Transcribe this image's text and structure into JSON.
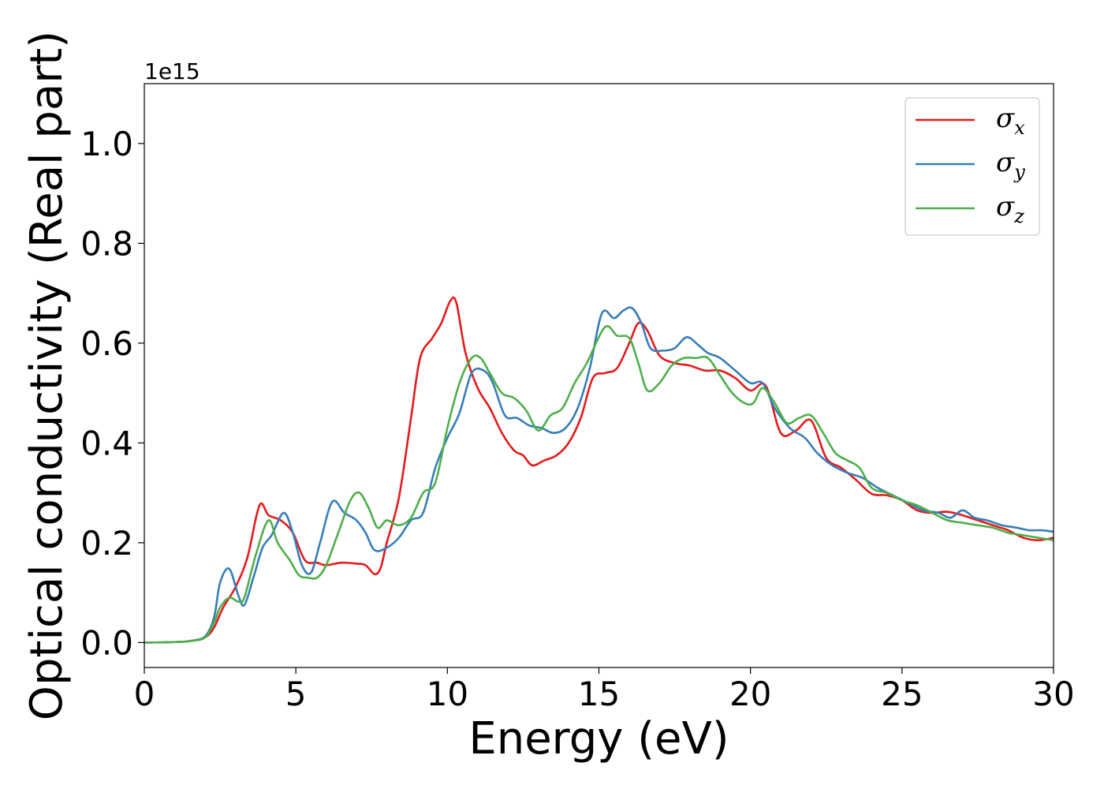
{
  "chart_data": {
    "type": "line",
    "xlabel": "Energy (eV)",
    "ylabel": "Optical conductivity (Real part)",
    "y_offset_label": "1e15",
    "xlim": [
      0,
      30
    ],
    "ylim": [
      -0.05,
      1.12
    ],
    "x_ticks": [
      0,
      5,
      10,
      15,
      20,
      25,
      30
    ],
    "x_tick_labels": [
      "0",
      "5",
      "10",
      "15",
      "20",
      "25",
      "30"
    ],
    "y_ticks": [
      0.0,
      0.2,
      0.4,
      0.6,
      0.8,
      1.0
    ],
    "y_tick_labels": [
      "0.0",
      "0.2",
      "0.4",
      "0.6",
      "0.8",
      "1.0"
    ],
    "grid": false,
    "legend_position": "top-right",
    "series": [
      {
        "name": "σx",
        "symbol": "σ",
        "subscript": "x",
        "color": "#e41a1c",
        "points": [
          [
            0,
            0
          ],
          [
            1,
            0.001
          ],
          [
            1.5,
            0.003
          ],
          [
            2,
            0.01
          ],
          [
            2.3,
            0.03
          ],
          [
            2.6,
            0.07
          ],
          [
            3,
            0.11
          ],
          [
            3.4,
            0.17
          ],
          [
            3.8,
            0.275
          ],
          [
            4.1,
            0.255
          ],
          [
            4.5,
            0.245
          ],
          [
            4.9,
            0.22
          ],
          [
            5.3,
            0.165
          ],
          [
            5.7,
            0.16
          ],
          [
            6,
            0.155
          ],
          [
            6.5,
            0.16
          ],
          [
            7,
            0.158
          ],
          [
            7.3,
            0.155
          ],
          [
            7.6,
            0.137
          ],
          [
            7.8,
            0.15
          ],
          [
            8,
            0.2
          ],
          [
            8.4,
            0.29
          ],
          [
            8.8,
            0.45
          ],
          [
            9.1,
            0.57
          ],
          [
            9.5,
            0.61
          ],
          [
            9.8,
            0.64
          ],
          [
            10.1,
            0.685
          ],
          [
            10.3,
            0.68
          ],
          [
            10.6,
            0.58
          ],
          [
            11,
            0.51
          ],
          [
            11.4,
            0.47
          ],
          [
            11.8,
            0.42
          ],
          [
            12.2,
            0.385
          ],
          [
            12.5,
            0.375
          ],
          [
            12.8,
            0.355
          ],
          [
            13.2,
            0.365
          ],
          [
            13.6,
            0.375
          ],
          [
            14,
            0.4
          ],
          [
            14.4,
            0.45
          ],
          [
            14.8,
            0.53
          ],
          [
            15.2,
            0.54
          ],
          [
            15.6,
            0.55
          ],
          [
            16,
            0.6
          ],
          [
            16.3,
            0.64
          ],
          [
            16.6,
            0.625
          ],
          [
            17,
            0.575
          ],
          [
            17.5,
            0.56
          ],
          [
            18,
            0.555
          ],
          [
            18.5,
            0.545
          ],
          [
            19,
            0.545
          ],
          [
            19.5,
            0.53
          ],
          [
            20,
            0.505
          ],
          [
            20.5,
            0.515
          ],
          [
            21,
            0.42
          ],
          [
            21.5,
            0.425
          ],
          [
            22,
            0.445
          ],
          [
            22.5,
            0.37
          ],
          [
            23,
            0.35
          ],
          [
            23.5,
            0.325
          ],
          [
            24,
            0.298
          ],
          [
            24.5,
            0.295
          ],
          [
            25,
            0.285
          ],
          [
            25.5,
            0.265
          ],
          [
            26,
            0.26
          ],
          [
            26.5,
            0.262
          ],
          [
            27,
            0.255
          ],
          [
            27.5,
            0.245
          ],
          [
            28,
            0.235
          ],
          [
            28.5,
            0.225
          ],
          [
            29,
            0.21
          ],
          [
            29.5,
            0.205
          ],
          [
            30,
            0.21
          ]
        ]
      },
      {
        "name": "σy",
        "symbol": "σ",
        "subscript": "y",
        "color": "#377eb8",
        "points": [
          [
            0,
            0
          ],
          [
            1,
            0.001
          ],
          [
            1.5,
            0.003
          ],
          [
            2,
            0.012
          ],
          [
            2.3,
            0.05
          ],
          [
            2.5,
            0.12
          ],
          [
            2.8,
            0.148
          ],
          [
            3.1,
            0.095
          ],
          [
            3.3,
            0.075
          ],
          [
            3.6,
            0.13
          ],
          [
            3.9,
            0.19
          ],
          [
            4.2,
            0.215
          ],
          [
            4.6,
            0.26
          ],
          [
            4.9,
            0.22
          ],
          [
            5.2,
            0.155
          ],
          [
            5.5,
            0.14
          ],
          [
            5.8,
            0.2
          ],
          [
            6.2,
            0.282
          ],
          [
            6.6,
            0.26
          ],
          [
            7,
            0.245
          ],
          [
            7.3,
            0.22
          ],
          [
            7.6,
            0.185
          ],
          [
            8,
            0.19
          ],
          [
            8.4,
            0.21
          ],
          [
            8.8,
            0.245
          ],
          [
            9.2,
            0.26
          ],
          [
            9.6,
            0.35
          ],
          [
            10,
            0.41
          ],
          [
            10.4,
            0.46
          ],
          [
            10.8,
            0.54
          ],
          [
            11.2,
            0.545
          ],
          [
            11.5,
            0.52
          ],
          [
            11.9,
            0.455
          ],
          [
            12.3,
            0.45
          ],
          [
            12.7,
            0.435
          ],
          [
            13.1,
            0.43
          ],
          [
            13.5,
            0.42
          ],
          [
            13.9,
            0.43
          ],
          [
            14.3,
            0.47
          ],
          [
            14.7,
            0.55
          ],
          [
            15.1,
            0.66
          ],
          [
            15.5,
            0.65
          ],
          [
            15.8,
            0.665
          ],
          [
            16.1,
            0.67
          ],
          [
            16.4,
            0.64
          ],
          [
            16.7,
            0.59
          ],
          [
            17.1,
            0.585
          ],
          [
            17.5,
            0.59
          ],
          [
            17.9,
            0.612
          ],
          [
            18.3,
            0.595
          ],
          [
            18.6,
            0.58
          ],
          [
            19,
            0.57
          ],
          [
            19.5,
            0.545
          ],
          [
            20,
            0.52
          ],
          [
            20.4,
            0.52
          ],
          [
            20.8,
            0.47
          ],
          [
            21.3,
            0.43
          ],
          [
            21.8,
            0.41
          ],
          [
            22.2,
            0.38
          ],
          [
            22.7,
            0.355
          ],
          [
            23.2,
            0.34
          ],
          [
            23.7,
            0.33
          ],
          [
            24.2,
            0.31
          ],
          [
            24.7,
            0.295
          ],
          [
            25.2,
            0.28
          ],
          [
            25.7,
            0.265
          ],
          [
            26.2,
            0.26
          ],
          [
            26.6,
            0.25
          ],
          [
            27,
            0.265
          ],
          [
            27.4,
            0.25
          ],
          [
            27.8,
            0.245
          ],
          [
            28.3,
            0.235
          ],
          [
            28.8,
            0.23
          ],
          [
            29.2,
            0.225
          ],
          [
            29.6,
            0.225
          ],
          [
            30,
            0.222
          ]
        ]
      },
      {
        "name": "σz",
        "symbol": "σ",
        "subscript": "z",
        "color": "#4daf4a",
        "points": [
          [
            0,
            0
          ],
          [
            1,
            0.001
          ],
          [
            1.5,
            0.003
          ],
          [
            2,
            0.01
          ],
          [
            2.3,
            0.04
          ],
          [
            2.5,
            0.07
          ],
          [
            2.8,
            0.09
          ],
          [
            3.1,
            0.082
          ],
          [
            3.3,
            0.09
          ],
          [
            3.7,
            0.18
          ],
          [
            4.1,
            0.245
          ],
          [
            4.4,
            0.2
          ],
          [
            4.8,
            0.165
          ],
          [
            5.1,
            0.135
          ],
          [
            5.4,
            0.13
          ],
          [
            5.7,
            0.13
          ],
          [
            6,
            0.155
          ],
          [
            6.4,
            0.22
          ],
          [
            6.8,
            0.285
          ],
          [
            7.1,
            0.3
          ],
          [
            7.4,
            0.27
          ],
          [
            7.7,
            0.23
          ],
          [
            8,
            0.245
          ],
          [
            8.4,
            0.235
          ],
          [
            8.8,
            0.25
          ],
          [
            9.2,
            0.3
          ],
          [
            9.6,
            0.32
          ],
          [
            10,
            0.43
          ],
          [
            10.4,
            0.52
          ],
          [
            10.8,
            0.57
          ],
          [
            11.1,
            0.57
          ],
          [
            11.4,
            0.54
          ],
          [
            11.8,
            0.5
          ],
          [
            12.2,
            0.49
          ],
          [
            12.6,
            0.465
          ],
          [
            13,
            0.425
          ],
          [
            13.4,
            0.455
          ],
          [
            13.8,
            0.47
          ],
          [
            14.2,
            0.52
          ],
          [
            14.6,
            0.56
          ],
          [
            15.2,
            0.632
          ],
          [
            15.6,
            0.615
          ],
          [
            16,
            0.61
          ],
          [
            16.3,
            0.56
          ],
          [
            16.6,
            0.505
          ],
          [
            17,
            0.52
          ],
          [
            17.4,
            0.555
          ],
          [
            17.8,
            0.57
          ],
          [
            18.2,
            0.57
          ],
          [
            18.6,
            0.57
          ],
          [
            19,
            0.535
          ],
          [
            19.4,
            0.5
          ],
          [
            19.8,
            0.48
          ],
          [
            20.1,
            0.48
          ],
          [
            20.4,
            0.51
          ],
          [
            20.8,
            0.48
          ],
          [
            21.2,
            0.44
          ],
          [
            21.6,
            0.45
          ],
          [
            22,
            0.455
          ],
          [
            22.4,
            0.42
          ],
          [
            22.8,
            0.38
          ],
          [
            23.2,
            0.365
          ],
          [
            23.6,
            0.35
          ],
          [
            24,
            0.31
          ],
          [
            24.5,
            0.3
          ],
          [
            25,
            0.285
          ],
          [
            25.5,
            0.275
          ],
          [
            26,
            0.26
          ],
          [
            26.5,
            0.245
          ],
          [
            27,
            0.24
          ],
          [
            27.5,
            0.235
          ],
          [
            28,
            0.23
          ],
          [
            28.5,
            0.22
          ],
          [
            29,
            0.215
          ],
          [
            29.5,
            0.21
          ],
          [
            30,
            0.205
          ]
        ]
      }
    ]
  }
}
